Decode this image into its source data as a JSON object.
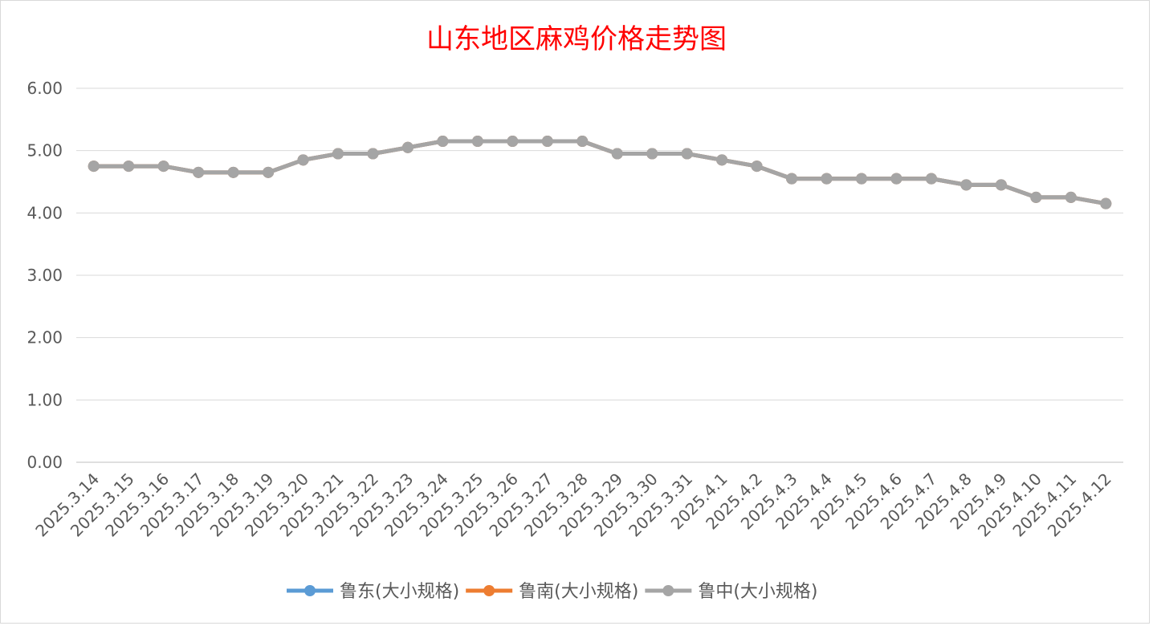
{
  "chart_data": {
    "type": "line",
    "title": "山东地区麻鸡价格走势图",
    "categories": [
      "2025.3.14",
      "2025.3.15",
      "2025.3.16",
      "2025.3.17",
      "2025.3.18",
      "2025.3.19",
      "2025.3.20",
      "2025.3.21",
      "2025.3.22",
      "2025.3.23",
      "2025.3.24",
      "2025.3.25",
      "2025.3.26",
      "2025.3.27",
      "2025.3.28",
      "2025.3.29",
      "2025.3.30",
      "2025.3.31",
      "2025.4.1",
      "2025.4.2",
      "2025.4.3",
      "2025.4.4",
      "2025.4.5",
      "2025.4.6",
      "2025.4.7",
      "2025.4.8",
      "2025.4.9",
      "2025.4.10",
      "2025.4.11",
      "2025.4.12"
    ],
    "series": [
      {
        "name": "鲁东(大小规格)",
        "color": "#5b9bd5",
        "values": [
          4.75,
          4.75,
          4.75,
          4.65,
          4.65,
          4.65,
          4.85,
          4.95,
          4.95,
          5.05,
          5.15,
          5.15,
          5.15,
          5.15,
          5.15,
          4.95,
          4.95,
          4.95,
          4.85,
          4.75,
          4.55,
          4.55,
          4.55,
          4.55,
          4.55,
          4.45,
          4.45,
          4.25,
          4.25,
          4.15
        ]
      },
      {
        "name": "鲁南(大小规格)",
        "color": "#ed7d31",
        "values": [
          4.75,
          4.75,
          4.75,
          4.65,
          4.65,
          4.65,
          4.85,
          4.95,
          4.95,
          5.05,
          5.15,
          5.15,
          5.15,
          5.15,
          5.15,
          4.95,
          4.95,
          4.95,
          4.85,
          4.75,
          4.55,
          4.55,
          4.55,
          4.55,
          4.55,
          4.45,
          4.45,
          4.25,
          4.25,
          4.15
        ]
      },
      {
        "name": "鲁中(大小规格)",
        "color": "#a5a5a5",
        "values": [
          4.75,
          4.75,
          4.75,
          4.65,
          4.65,
          4.65,
          4.85,
          4.95,
          4.95,
          5.05,
          5.15,
          5.15,
          5.15,
          5.15,
          5.15,
          4.95,
          4.95,
          4.95,
          4.85,
          4.75,
          4.55,
          4.55,
          4.55,
          4.55,
          4.55,
          4.45,
          4.45,
          4.25,
          4.25,
          4.15
        ]
      }
    ],
    "ylim": [
      0,
      6
    ],
    "yticks": [
      {
        "value": 0,
        "label": "0.00"
      },
      {
        "value": 1,
        "label": "1.00"
      },
      {
        "value": 2,
        "label": "2.00"
      },
      {
        "value": 3,
        "label": "3.00"
      },
      {
        "value": 4,
        "label": "4.00"
      },
      {
        "value": 5,
        "label": "5.00"
      },
      {
        "value": 6,
        "label": "6.00"
      }
    ],
    "grid": true,
    "legend": "bottom"
  }
}
